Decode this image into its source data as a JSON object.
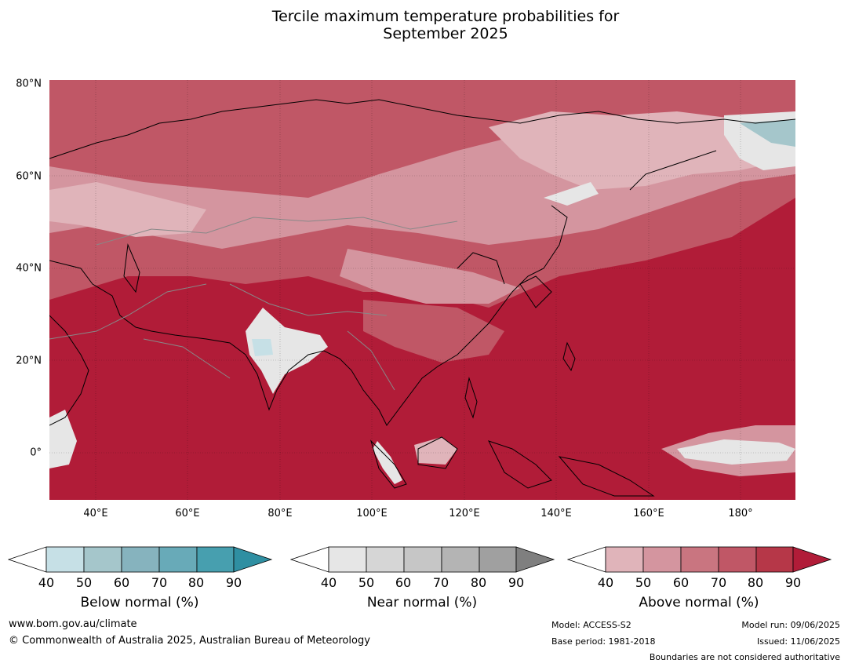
{
  "title_line1": "Tercile maximum temperature probabilities for",
  "title_line2": "September 2025",
  "y_axis_labels": [
    "80°N",
    "60°N",
    "40°N",
    "20°N",
    "0°"
  ],
  "x_axis_labels": [
    "40°E",
    "60°E",
    "80°E",
    "100°E",
    "120°E",
    "140°E",
    "160°E",
    "180°"
  ],
  "legends": [
    {
      "title": "Below normal (%)",
      "ticks": [
        "40",
        "50",
        "60",
        "70",
        "80",
        "90"
      ],
      "colors": [
        "#c6e0e6",
        "#a5c6cb",
        "#86b3be",
        "#68aab8",
        "#479faf",
        "#2f8fa2"
      ]
    },
    {
      "title": "Near normal (%)",
      "ticks": [
        "40",
        "50",
        "60",
        "70",
        "80",
        "90"
      ],
      "colors": [
        "#e6e6e6",
        "#d6d6d6",
        "#c6c6c6",
        "#b4b4b4",
        "#a0a0a0",
        "#7f7f7f"
      ]
    },
    {
      "title": "Above normal (%)",
      "ticks": [
        "40",
        "50",
        "60",
        "70",
        "80",
        "90"
      ],
      "colors": [
        "#e0b4ba",
        "#d4959f",
        "#c97580",
        "#c05766",
        "#b63748",
        "#b11c38"
      ]
    }
  ],
  "footer": {
    "website": "www.bom.gov.au/climate",
    "copyright": "© Commonwealth of Australia 2025, Australian Bureau of Meteorology",
    "model": "Model: ACCESS-S2",
    "base_period": "Base period: 1981-2018",
    "model_run": "Model run: 09/06/2025",
    "issued": "Issued: 11/06/2025",
    "boundaries": "Boundaries are not considered authoritative"
  },
  "map_colors": {
    "deep_red": "#b11c38",
    "medium_red": "#c05766",
    "light_red": "#d4959f",
    "pale_red": "#e0b4ba",
    "near_normal": "#e6e6e6",
    "below_normal": "#a5c6cb"
  }
}
